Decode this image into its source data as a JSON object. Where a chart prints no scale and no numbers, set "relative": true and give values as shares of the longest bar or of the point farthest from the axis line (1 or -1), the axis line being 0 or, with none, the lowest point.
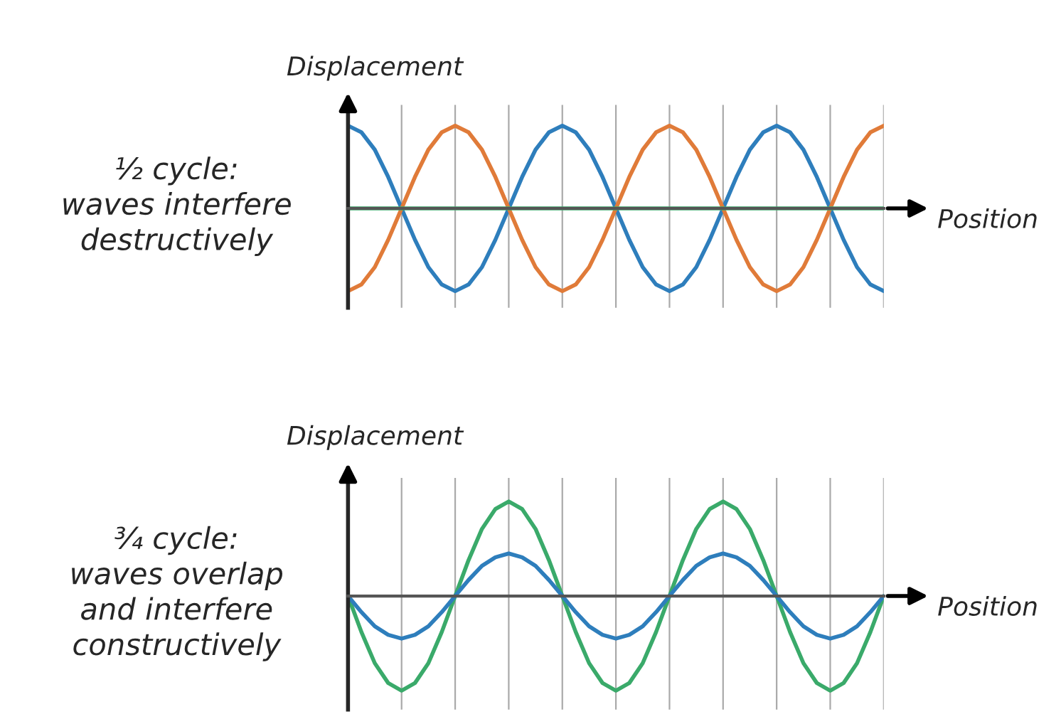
{
  "chart_data": [
    {
      "type": "line",
      "relative": true,
      "title": "½ cycle:\nwaves interfere\ndestructively",
      "xlabel": "Position",
      "ylabel": "Displacement",
      "grid": "x",
      "categories": [
        null,
        null,
        null,
        null,
        null,
        null,
        null,
        null,
        null,
        null,
        null,
        null,
        null,
        null,
        null,
        null,
        null,
        null,
        null,
        null,
        null,
        null,
        null,
        null,
        null,
        null,
        null,
        null,
        null,
        null,
        null,
        null,
        null,
        null,
        null,
        null,
        null,
        null,
        null,
        null,
        null
      ],
      "series": [
        {
          "color": "#2e7ebc",
          "values": [
            1,
            0.92,
            0.71,
            0.38,
            0,
            -0.38,
            -0.71,
            -0.92,
            -1,
            -0.92,
            -0.71,
            -0.38,
            0,
            0.38,
            0.71,
            0.92,
            1,
            0.92,
            0.71,
            0.38,
            0,
            -0.38,
            -0.71,
            -0.92,
            -1,
            -0.92,
            -0.71,
            -0.38,
            0,
            0.38,
            0.71,
            0.92,
            1,
            0.92,
            0.71,
            0.38,
            0,
            -0.38,
            -0.71,
            -0.92,
            -1
          ]
        },
        {
          "color": "#e07b39",
          "values": [
            -1,
            -0.92,
            -0.71,
            -0.38,
            0,
            0.38,
            0.71,
            0.92,
            1,
            0.92,
            0.71,
            0.38,
            0,
            -0.38,
            -0.71,
            -0.92,
            -1,
            -0.92,
            -0.71,
            -0.38,
            0,
            0.38,
            0.71,
            0.92,
            1,
            0.92,
            0.71,
            0.38,
            0,
            -0.38,
            -0.71,
            -0.92,
            -1,
            -0.92,
            -0.71,
            -0.38,
            0,
            0.38,
            0.71,
            0.92,
            1
          ]
        },
        {
          "color": "#3aaa6a",
          "values": [
            0,
            0,
            0,
            0,
            0,
            0,
            0,
            0,
            0,
            0,
            0,
            0,
            0,
            0,
            0,
            0,
            0,
            0,
            0,
            0,
            0,
            0,
            0,
            0,
            0,
            0,
            0,
            0,
            0,
            0,
            0,
            0,
            0,
            0,
            0,
            0,
            0,
            0,
            0,
            0,
            0
          ]
        }
      ]
    },
    {
      "type": "line",
      "relative": true,
      "title": "¾ cycle:\nwaves overlap\nand interfere\nconstructively",
      "xlabel": "Position",
      "ylabel": "Displacement",
      "grid": "x",
      "categories": [
        null,
        null,
        null,
        null,
        null,
        null,
        null,
        null,
        null,
        null,
        null,
        null,
        null,
        null,
        null,
        null,
        null,
        null,
        null,
        null,
        null,
        null,
        null,
        null,
        null,
        null,
        null,
        null,
        null,
        null,
        null,
        null,
        null,
        null,
        null,
        null,
        null,
        null,
        null,
        null,
        null
      ],
      "series": [
        {
          "color": "#3aaa6a",
          "values": [
            0,
            -0.38,
            -0.71,
            -0.92,
            -1,
            -0.92,
            -0.71,
            -0.38,
            0,
            0.38,
            0.71,
            0.92,
            1,
            0.92,
            0.71,
            0.38,
            0,
            -0.38,
            -0.71,
            -0.92,
            -1,
            -0.92,
            -0.71,
            -0.38,
            0,
            0.38,
            0.71,
            0.92,
            1,
            0.92,
            0.71,
            0.38,
            0,
            -0.38,
            -0.71,
            -0.92,
            -1,
            -0.92,
            -0.71,
            -0.38,
            0
          ]
        },
        {
          "color": "#2e7ebc",
          "values": [
            0,
            -0.17,
            -0.32,
            -0.41,
            -0.45,
            -0.41,
            -0.32,
            -0.17,
            0,
            0.17,
            0.32,
            0.41,
            0.45,
            0.41,
            0.32,
            0.17,
            0,
            -0.17,
            -0.32,
            -0.41,
            -0.45,
            -0.41,
            -0.32,
            -0.17,
            0,
            0.17,
            0.32,
            0.41,
            0.45,
            0.41,
            0.32,
            0.17,
            0,
            -0.17,
            -0.32,
            -0.41,
            -0.45,
            -0.41,
            -0.32,
            -0.17,
            0
          ]
        }
      ]
    }
  ]
}
